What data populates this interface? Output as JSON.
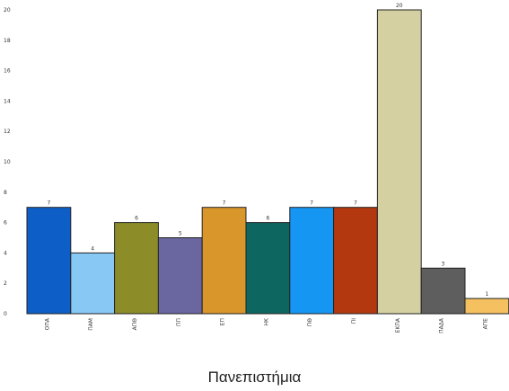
{
  "chart_data": {
    "type": "bar",
    "categories": [
      "ΟΠΑ",
      "ΠΑΜ",
      "ΑΠΘ",
      "ΠΠ",
      "ΕΠ",
      "ΗΚ",
      "ΠΘ",
      "ΠΙ",
      "ΕΚΠΑ",
      "ΠΑΔΑ",
      "ΑΠΕ"
    ],
    "values": [
      7,
      4,
      6,
      5,
      7,
      6,
      7,
      7,
      20,
      3,
      1
    ],
    "colors": [
      "#0d5ec7",
      "#87c8f5",
      "#8c8c28",
      "#6a66a0",
      "#d9962a",
      "#0e6660",
      "#1596f2",
      "#b33810",
      "#d4d0a2",
      "#5e5e5e",
      "#f5c060"
    ],
    "title": "",
    "xlabel": "Πανεπιστήμια",
    "ylabel": "",
    "ylim": [
      0,
      20
    ],
    "yticks": [
      0,
      2,
      4,
      6,
      8,
      10,
      12,
      14,
      16,
      18,
      20
    ],
    "grid": false,
    "legend": "none"
  }
}
